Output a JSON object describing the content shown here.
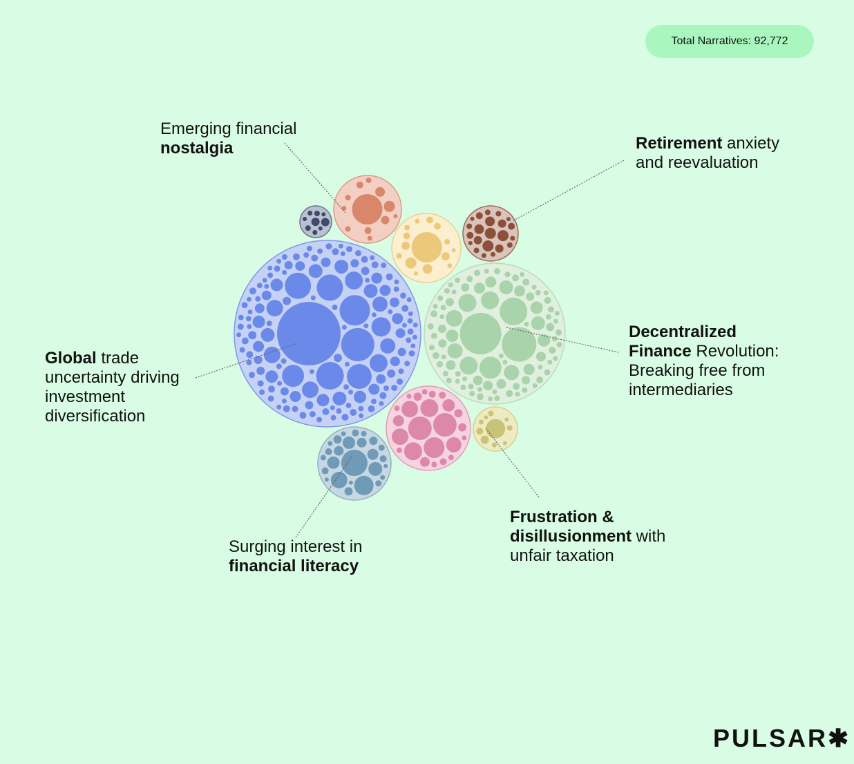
{
  "badge": {
    "text": "Total Narratives: 92,772"
  },
  "logo": {
    "text": "PULSAR",
    "mark": "✱"
  },
  "clusters": [
    {
      "id": "navy",
      "fill": "#3d4a6b",
      "bg": "#b9c0cf",
      "stroke": "#6b7590"
    },
    {
      "id": "emerging-financial-nostalgia",
      "fill": "#d9866a",
      "bg": "#f2cfc2",
      "stroke": "#d99a86"
    },
    {
      "id": "yellow",
      "fill": "#ecc97a",
      "bg": "#fbefd0",
      "stroke": "#ecd08f"
    },
    {
      "id": "retirement-anxiety",
      "fill": "#8b4f3a",
      "bg": "#d9c4b9",
      "stroke": "#9c6a58"
    },
    {
      "id": "global-trade-uncertainty",
      "fill": "#6b89e8",
      "bg": "#c6d2f5",
      "stroke": "#7d97e8"
    },
    {
      "id": "decentralized-finance",
      "fill": "#a9d3ab",
      "bg": "#e1efdf",
      "stroke": "#b9dcb9"
    },
    {
      "id": "frustration-unfair-taxation-pink",
      "fill": "#de88a9",
      "bg": "#f5d3df",
      "stroke": "#e59ab6"
    },
    {
      "id": "frustration-unfair-taxation",
      "fill": "#c9c37a",
      "bg": "#eeebc3",
      "stroke": "#d6d08a"
    },
    {
      "id": "financial-literacy",
      "fill": "#6f9ab8",
      "bg": "#c7d8e2",
      "stroke": "#8fb0c6"
    }
  ],
  "labels": [
    {
      "id": "emerging-financial-nostalgia",
      "lines": [
        [
          {
            "t": "Emerging financial",
            "b": false
          }
        ],
        [
          {
            "t": "nostalgia",
            "b": true
          }
        ]
      ]
    },
    {
      "id": "retirement-anxiety",
      "lines": [
        [
          {
            "t": "Retirement",
            "b": true
          },
          {
            "t": " anxiety",
            "b": false
          }
        ],
        [
          {
            "t": "and reevaluation",
            "b": false
          }
        ]
      ]
    },
    {
      "id": "global-trade-uncertainty",
      "lines": [
        [
          {
            "t": "Global",
            "b": true
          },
          {
            "t": " trade",
            "b": false
          }
        ],
        [
          {
            "t": "uncertainty driving",
            "b": false
          }
        ],
        [
          {
            "t": "investment",
            "b": false
          }
        ],
        [
          {
            "t": "diversification",
            "b": false
          }
        ]
      ]
    },
    {
      "id": "decentralized-finance",
      "lines": [
        [
          {
            "t": "Decentralized",
            "b": true
          }
        ],
        [
          {
            "t": "Finance",
            "b": true
          },
          {
            "t": " Revolution:",
            "b": false
          }
        ],
        [
          {
            "t": "Breaking free from",
            "b": false
          }
        ],
        [
          {
            "t": "intermediaries",
            "b": false
          }
        ]
      ]
    },
    {
      "id": "financial-literacy",
      "lines": [
        [
          {
            "t": "Surging interest in",
            "b": false
          }
        ],
        [
          {
            "t": "financial literacy",
            "b": true
          }
        ]
      ]
    },
    {
      "id": "frustration-unfair-taxation",
      "lines": [
        [
          {
            "t": "Frustration &",
            "b": true
          }
        ],
        [
          {
            "t": "disillusionment",
            "b": true
          },
          {
            "t": " with",
            "b": false
          }
        ],
        [
          {
            "t": "unfair taxation",
            "b": false
          }
        ]
      ]
    }
  ]
}
